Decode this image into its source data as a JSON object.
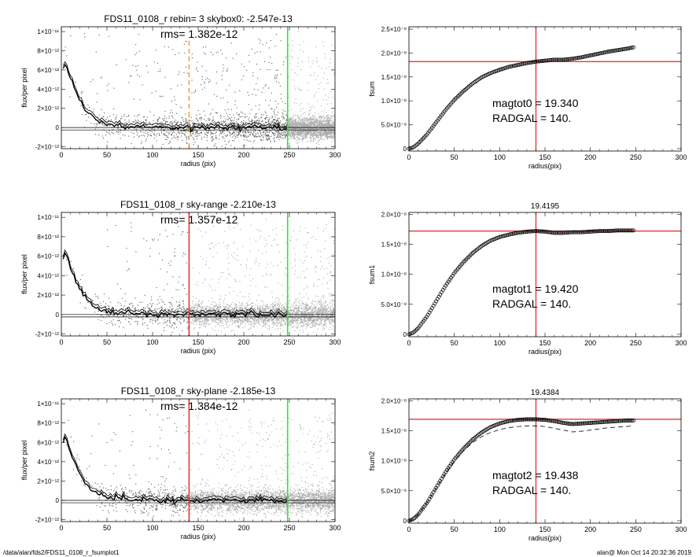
{
  "footer": {
    "path": "/data/alan/fds2/FDS11_0108_r_fsumplot1",
    "stamp": "alan@  Mon Oct 14 20:32:36 2019"
  },
  "colors": {
    "points": "#555555",
    "sky_points": "#a9a9a9",
    "profile": "#000000",
    "radgal_line": "#e53935",
    "radgal_dashed": "#f5a04a",
    "outer_line": "#3cdc3c",
    "ref_line": "#e53935"
  },
  "chart_data": [
    {
      "id": "profile-1",
      "type": "scatter",
      "title": "FDS11_0108_r rebin= 3    skybox0: -2.547e-13",
      "annotation": "rms= 1.382e-12",
      "xlabel": "radius (pix)",
      "ylabel": "flux/per pixel",
      "xlim": [
        0,
        300
      ],
      "ylim": [
        -2.2e-12,
        1.05e-11
      ],
      "xticks": [
        0,
        50,
        100,
        150,
        200,
        250,
        300
      ],
      "xtick_labels": [
        "0",
        "50",
        "100",
        "150",
        "200",
        "250",
        "300"
      ],
      "yticks": [
        -2e-12,
        0,
        2e-12,
        4e-12,
        6e-12,
        8e-12,
        1e-11
      ],
      "ytick_labels": [
        "-2×10⁻¹²",
        "0",
        "2×10⁻¹²",
        "4×10⁻¹²",
        "6×10⁻¹²",
        "8×10⁻¹²",
        "1×10⁻¹¹"
      ],
      "radgal": 140,
      "radgal_style": "dashed",
      "outer_radius": 248,
      "sky_band_start": 248,
      "hlines": [
        0,
        -2.5e-13
      ],
      "profile_x": [
        2,
        4,
        6,
        8,
        10,
        12,
        15,
        18,
        21,
        25,
        30,
        35,
        40,
        45,
        50,
        60,
        70,
        80,
        90,
        100,
        120,
        140,
        160,
        180,
        200,
        220,
        248
      ],
      "profile_y": [
        5.9e-12,
        6.4e-12,
        6.1e-12,
        5.7e-12,
        5e-12,
        4.5e-12,
        3.8e-12,
        3.2e-12,
        2.6e-12,
        2e-12,
        1.4e-12,
        1e-12,
        6.5e-13,
        5e-13,
        3.5e-13,
        2e-13,
        1.2e-13,
        8e-14,
        5e-14,
        2e-14,
        0,
        0,
        0,
        0,
        0,
        0,
        0
      ]
    },
    {
      "id": "cumulative-1",
      "type": "scatter",
      "title": "",
      "xlabel": "radius(pix)",
      "ylabel": "fsum",
      "xlim": [
        0,
        300
      ],
      "ylim": [
        -5e-10,
        2.55e-08
      ],
      "xticks": [
        0,
        50,
        100,
        150,
        200,
        250,
        300
      ],
      "xtick_labels": [
        "0",
        "50",
        "100",
        "150",
        "200",
        "250",
        "300"
      ],
      "yticks": [
        0,
        5e-09,
        1e-08,
        1.5e-08,
        2e-08,
        2.5e-08
      ],
      "ytick_labels": [
        "0",
        "5.0×10⁻⁹",
        "1.0×10⁻⁸",
        "1.5×10⁻⁸",
        "2.0×10⁻⁸",
        "2.5×10⁻⁸"
      ],
      "vline": 140,
      "hline": 1.82e-08,
      "annotations": [
        "magtot0 =  19.340",
        "RADGAL =    140."
      ],
      "curve_x": [
        0,
        5,
        10,
        20,
        30,
        40,
        50,
        60,
        70,
        80,
        90,
        100,
        110,
        120,
        130,
        140,
        150,
        160,
        170,
        180,
        190,
        200,
        210,
        220,
        230,
        240,
        248
      ],
      "curve_y": [
        0,
        3e-10,
        1e-09,
        3e-09,
        5.5e-09,
        8e-09,
        1.02e-08,
        1.2e-08,
        1.36e-08,
        1.49e-08,
        1.58e-08,
        1.65e-08,
        1.71e-08,
        1.75e-08,
        1.79e-08,
        1.82e-08,
        1.84e-08,
        1.86e-08,
        1.86e-08,
        1.88e-08,
        1.91e-08,
        1.95e-08,
        1.99e-08,
        2.03e-08,
        2.06e-08,
        2.09e-08,
        2.12e-08
      ]
    },
    {
      "id": "profile-2",
      "type": "scatter",
      "title": "FDS11_0108_r sky-range -2.210e-13",
      "annotation": "rms= 1.357e-12",
      "xlabel": "radius (pix)",
      "ylabel": "flux/per pixel",
      "xlim": [
        0,
        300
      ],
      "ylim": [
        -2.2e-12,
        1.05e-11
      ],
      "xticks": [
        0,
        50,
        100,
        150,
        200,
        250,
        300
      ],
      "xtick_labels": [
        "0",
        "50",
        "100",
        "150",
        "200",
        "250",
        "300"
      ],
      "yticks": [
        -2e-12,
        0,
        2e-12,
        4e-12,
        6e-12,
        8e-12,
        1e-11
      ],
      "ytick_labels": [
        "-2×10⁻¹²",
        "0",
        "2×10⁻¹²",
        "4×10⁻¹²",
        "6×10⁻¹²",
        "8×10⁻¹²",
        "1×10⁻¹¹"
      ],
      "radgal": 140,
      "radgal_style": "solid",
      "outer_radius": 248,
      "sky_band_start": 140,
      "hlines": [
        0,
        -2.5e-13
      ],
      "profile_x": [
        2,
        4,
        6,
        8,
        10,
        12,
        15,
        18,
        21,
        25,
        30,
        35,
        40,
        45,
        50,
        60,
        70,
        80,
        90,
        100,
        120,
        140,
        160,
        180,
        200,
        220,
        248
      ],
      "profile_y": [
        5.8e-12,
        6.3e-12,
        6e-12,
        5.6e-12,
        4.9e-12,
        4.4e-12,
        3.7e-12,
        3.1e-12,
        2.5e-12,
        1.9e-12,
        1.3e-12,
        9e-13,
        6e-13,
        4.5e-13,
        3e-13,
        1.8e-13,
        1e-13,
        6e-14,
        3e-14,
        1e-14,
        0,
        0,
        0,
        0,
        0,
        0,
        0
      ]
    },
    {
      "id": "cumulative-2",
      "type": "scatter",
      "title": "19.4195",
      "xlabel": "radius(pix)",
      "ylabel": "fsum1",
      "xlim": [
        0,
        300
      ],
      "ylim": [
        -4e-10,
        2.03e-08
      ],
      "xticks": [
        0,
        50,
        100,
        150,
        200,
        250,
        300
      ],
      "xtick_labels": [
        "0",
        "50",
        "100",
        "150",
        "200",
        "250",
        "300"
      ],
      "yticks": [
        0,
        5e-09,
        1e-08,
        1.5e-08,
        2e-08
      ],
      "ytick_labels": [
        "0",
        "5.0×10⁻⁹",
        "1.0×10⁻⁸",
        "1.5×10⁻⁸",
        "2.0×10⁻⁸"
      ],
      "vline": 140,
      "hline": 1.72e-08,
      "annotations": [
        "magtot1 =  19.420",
        "RADGAL =    140."
      ],
      "curve_x": [
        0,
        5,
        10,
        20,
        30,
        40,
        50,
        60,
        70,
        80,
        90,
        100,
        110,
        120,
        130,
        140,
        150,
        160,
        170,
        180,
        190,
        200,
        210,
        220,
        230,
        240,
        248
      ],
      "curve_y": [
        0,
        3e-10,
        1e-09,
        3e-09,
        5.5e-09,
        8e-09,
        1.02e-08,
        1.2e-08,
        1.35e-08,
        1.47e-08,
        1.56e-08,
        1.62e-08,
        1.66e-08,
        1.69e-08,
        1.71e-08,
        1.72e-08,
        1.71e-08,
        1.69e-08,
        1.69e-08,
        1.7e-08,
        1.7e-08,
        1.71e-08,
        1.72e-08,
        1.72e-08,
        1.73e-08,
        1.73e-08,
        1.73e-08
      ]
    },
    {
      "id": "profile-3",
      "type": "scatter",
      "title": "FDS11_0108_r sky-plane -2.185e-13",
      "annotation": "rms= 1.384e-12",
      "xlabel": "radius (pix)",
      "ylabel": "flux/per pixel",
      "xlim": [
        0,
        300
      ],
      "ylim": [
        -2.2e-12,
        1.05e-11
      ],
      "xticks": [
        0,
        50,
        100,
        150,
        200,
        250,
        300
      ],
      "xtick_labels": [
        "0",
        "50",
        "100",
        "150",
        "200",
        "250",
        "300"
      ],
      "yticks": [
        -2e-12,
        0,
        2e-12,
        4e-12,
        6e-12,
        8e-12,
        1e-11
      ],
      "ytick_labels": [
        "-2×10⁻¹²",
        "0",
        "2×10⁻¹²",
        "4×10⁻¹²",
        "6×10⁻¹²",
        "8×10⁻¹²",
        "1×10⁻¹¹"
      ],
      "radgal": 140,
      "radgal_style": "solid",
      "outer_radius": 248,
      "sky_band_start": 140,
      "hlines": [
        0,
        -2.5e-13
      ],
      "profile_x": [
        2,
        4,
        6,
        8,
        10,
        12,
        15,
        18,
        21,
        25,
        30,
        35,
        40,
        45,
        50,
        60,
        70,
        80,
        90,
        100,
        120,
        140,
        160,
        180,
        200,
        220,
        248
      ],
      "profile_y": [
        5.9e-12,
        6.4e-12,
        6.1e-12,
        5.7e-12,
        5e-12,
        4.5e-12,
        3.8e-12,
        3.2e-12,
        2.6e-12,
        2e-12,
        1.4e-12,
        1e-12,
        6.5e-13,
        5e-13,
        3.5e-13,
        2e-13,
        1.2e-13,
        8e-14,
        5e-14,
        2e-14,
        0,
        0,
        0,
        0,
        0,
        0,
        0
      ]
    },
    {
      "id": "cumulative-3",
      "type": "scatter",
      "title": "19.4384",
      "xlabel": "radius(pix)",
      "ylabel": "fsum2",
      "xlim": [
        0,
        300
      ],
      "ylim": [
        -4e-10,
        2.03e-08
      ],
      "xticks": [
        0,
        50,
        100,
        150,
        200,
        250,
        300
      ],
      "xtick_labels": [
        "0",
        "50",
        "100",
        "150",
        "200",
        "250",
        "300"
      ],
      "yticks": [
        0,
        5e-09,
        1e-08,
        1.5e-08,
        2e-08
      ],
      "ytick_labels": [
        "0",
        "5.0×10⁻⁹",
        "1.0×10⁻⁸",
        "1.5×10⁻⁸",
        "2.0×10⁻⁸"
      ],
      "vline": 140,
      "hline": 1.69e-08,
      "annotations": [
        "magtot2 =  19.438",
        "RADGAL =    140."
      ],
      "curve_x": [
        0,
        5,
        10,
        20,
        30,
        40,
        50,
        60,
        70,
        80,
        90,
        100,
        110,
        120,
        130,
        140,
        150,
        160,
        170,
        180,
        190,
        200,
        210,
        220,
        230,
        240,
        248
      ],
      "curve_y": [
        0,
        3e-10,
        1e-09,
        3e-09,
        5.5e-09,
        8e-09,
        1.02e-08,
        1.2e-08,
        1.35e-08,
        1.47e-08,
        1.56e-08,
        1.62e-08,
        1.66e-08,
        1.68e-08,
        1.69e-08,
        1.69e-08,
        1.68e-08,
        1.66e-08,
        1.63e-08,
        1.61e-08,
        1.62e-08,
        1.63e-08,
        1.64e-08,
        1.65e-08,
        1.66e-08,
        1.67e-08,
        1.67e-08
      ],
      "dashed_y": [
        0,
        3e-10,
        1e-09,
        3e-09,
        5.4e-09,
        7.8e-09,
        9.9e-09,
        1.16e-08,
        1.3e-08,
        1.4e-08,
        1.47e-08,
        1.52e-08,
        1.55e-08,
        1.57e-08,
        1.58e-08,
        1.58e-08,
        1.57e-08,
        1.54e-08,
        1.51e-08,
        1.48e-08,
        1.49e-08,
        1.51e-08,
        1.53e-08,
        1.55e-08,
        1.56e-08,
        1.57e-08,
        1.58e-08
      ]
    }
  ]
}
